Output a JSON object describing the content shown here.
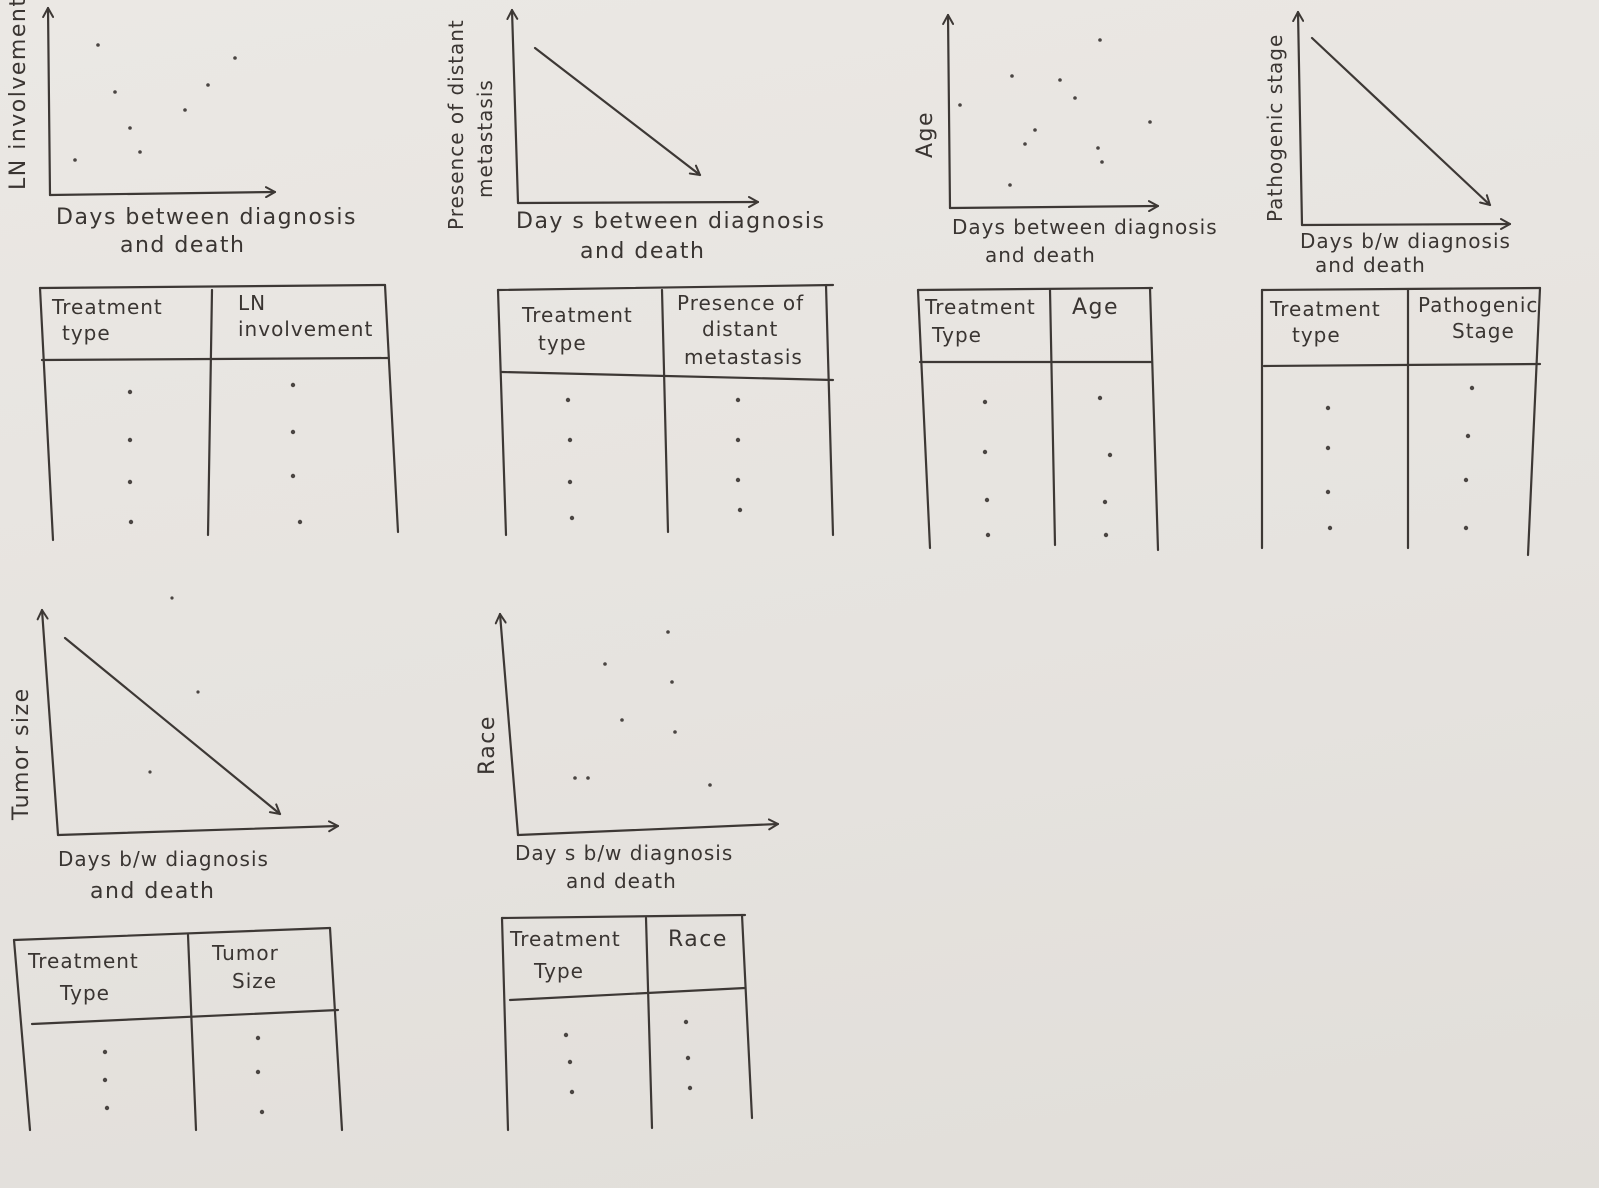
{
  "sketches": [
    {
      "id": "ln",
      "ylabel": "LN involvement",
      "xlabel_line1": "Days between diagnosis",
      "xlabel_line2": "and death",
      "trend": "scatter",
      "table_col1_lines": [
        "Treatment",
        "type"
      ],
      "table_col2_lines": [
        "LN",
        "involvement"
      ]
    },
    {
      "id": "metastasis",
      "ylabel_line1": "Presence of distant",
      "ylabel_line2": "metastasis",
      "xlabel_line1": "Day s between diagnosis",
      "xlabel_line2": "and death",
      "trend": "decreasing",
      "table_col1_lines": [
        "Treatment",
        "type"
      ],
      "table_col2_lines": [
        "Presence of",
        "distant",
        "metastasis"
      ]
    },
    {
      "id": "age",
      "ylabel": "Age",
      "xlabel_line1": "Days between diagnosis",
      "xlabel_line2": "and death",
      "trend": "scatter",
      "table_col1_lines": [
        "Treatment",
        "Type"
      ],
      "table_col2_lines": [
        "Age"
      ]
    },
    {
      "id": "stage",
      "ylabel": "Pathogenic stage",
      "xlabel_line1": "Days b/w diagnosis",
      "xlabel_line2": "and death",
      "trend": "decreasing",
      "table_col1_lines": [
        "Treatment",
        "type"
      ],
      "table_col2_lines": [
        "Pathogenic",
        "Stage"
      ]
    },
    {
      "id": "tumor",
      "ylabel": "Tumor size",
      "xlabel_line1": "Days b/w diagnosis",
      "xlabel_line2": "and death",
      "trend": "decreasing",
      "table_col1_lines": [
        "Treatment",
        "Type"
      ],
      "table_col2_lines": [
        "Tumor",
        "Size"
      ]
    },
    {
      "id": "race",
      "ylabel": "Race",
      "xlabel_line1": "Day s b/w diagnosis",
      "xlabel_line2": "and death",
      "trend": "scatter",
      "table_col1_lines": [
        "Treatment",
        "Type"
      ],
      "table_col2_lines": [
        "Race"
      ]
    }
  ],
  "colors": {
    "paper": "#e8e5e1",
    "ink": "#3d3835"
  }
}
